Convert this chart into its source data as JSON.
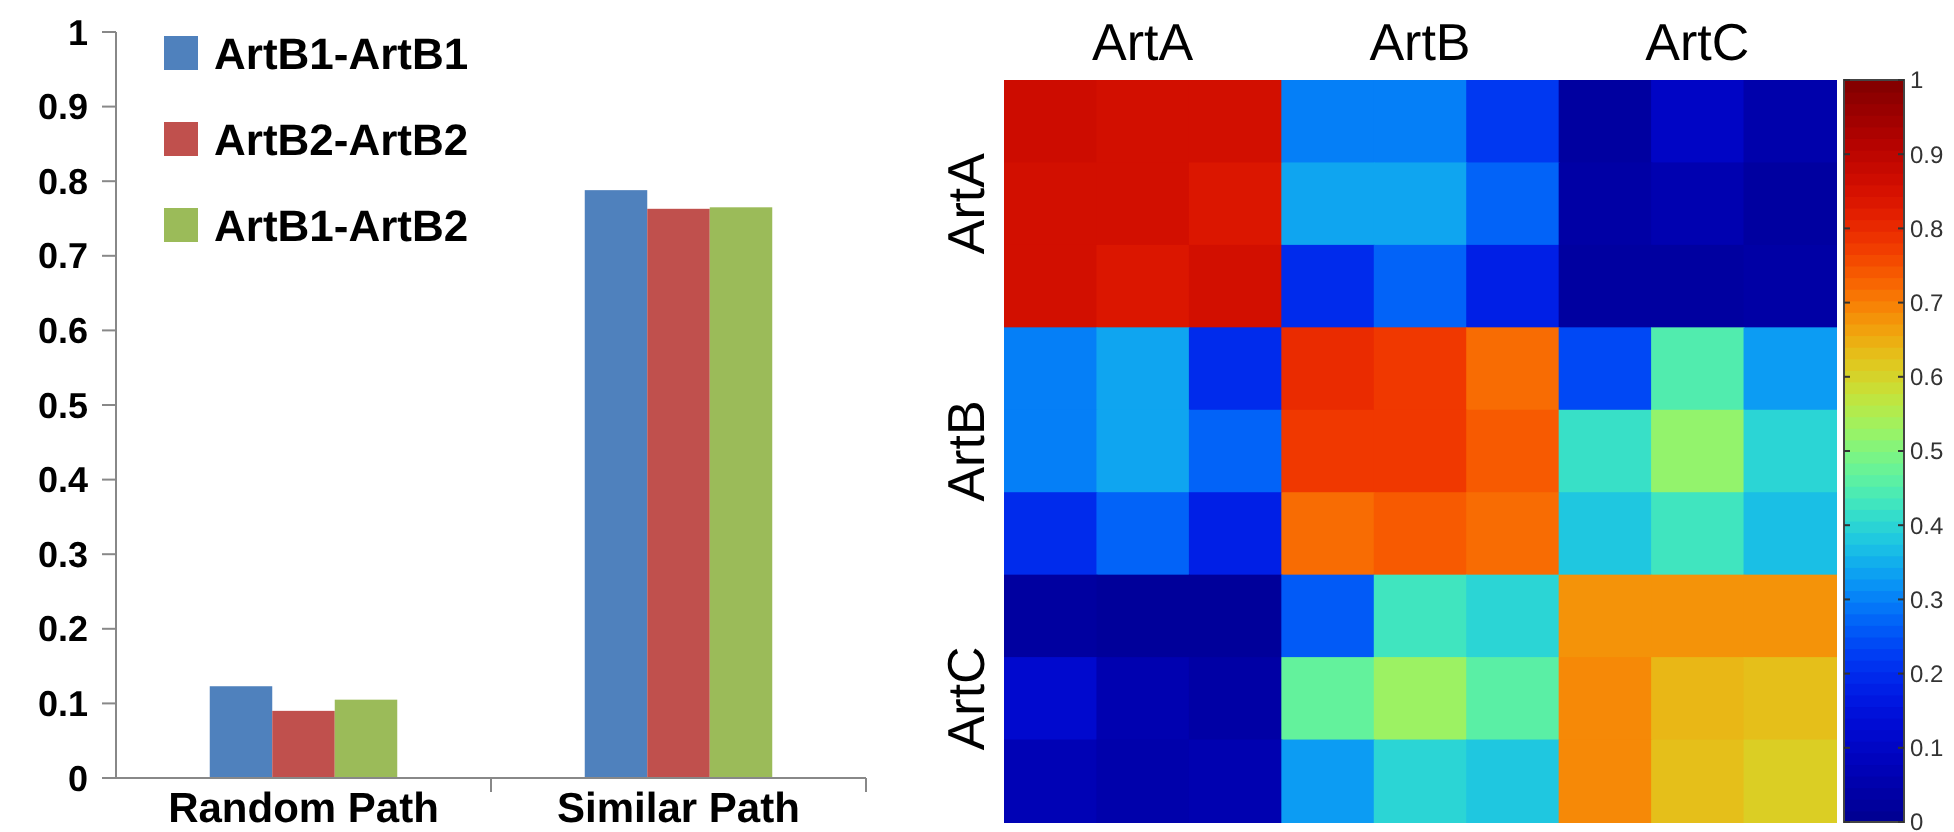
{
  "chart_data": [
    {
      "type": "bar",
      "categories": [
        "Random Path",
        "Similar Path"
      ],
      "ylim": [
        0,
        1
      ],
      "yticks": [
        0,
        0.1,
        0.2,
        0.3,
        0.4,
        0.5,
        0.6,
        0.7,
        0.8,
        0.9,
        1
      ],
      "grid": false,
      "legend": "top left",
      "series": [
        {
          "name": "ArtB1-ArtB1",
          "color": "#4f81bd",
          "values": [
            0.123,
            0.788
          ]
        },
        {
          "name": "ArtB2-ArtB2",
          "color": "#c0504d",
          "values": [
            0.09,
            0.763
          ]
        },
        {
          "name": "ArtB1-ArtB2",
          "color": "#9bbb59",
          "values": [
            0.105,
            0.765
          ]
        }
      ]
    },
    {
      "type": "heatmap",
      "categories": [
        null,
        "ArtA",
        null,
        null,
        "ArtB",
        null,
        null,
        "ArtC",
        null
      ],
      "y_categories": [
        null,
        "ArtA",
        null,
        null,
        "ArtB",
        null,
        null,
        "ArtC",
        null
      ],
      "clim": [
        0,
        1
      ],
      "cticks": [
        0,
        0.1,
        0.2,
        0.3,
        0.4,
        0.5,
        0.6,
        0.7,
        0.8,
        0.9,
        1
      ],
      "cells": [
        [
          0.87,
          0.86,
          0.86,
          0.3,
          0.3,
          0.22,
          0.03,
          0.1,
          0.05
        ],
        [
          0.86,
          0.86,
          0.84,
          0.34,
          0.34,
          0.27,
          0.04,
          0.06,
          0.03
        ],
        [
          0.86,
          0.84,
          0.86,
          0.2,
          0.27,
          0.18,
          0.03,
          0.03,
          0.04
        ],
        [
          0.3,
          0.34,
          0.2,
          0.8,
          0.78,
          0.72,
          0.24,
          0.45,
          0.33
        ],
        [
          0.3,
          0.34,
          0.27,
          0.78,
          0.78,
          0.74,
          0.42,
          0.52,
          0.4
        ],
        [
          0.2,
          0.27,
          0.18,
          0.72,
          0.74,
          0.72,
          0.38,
          0.43,
          0.37
        ],
        [
          0.03,
          0.02,
          0.02,
          0.26,
          0.43,
          0.4,
          0.68,
          0.68,
          0.68
        ],
        [
          0.12,
          0.06,
          0.04,
          0.47,
          0.53,
          0.46,
          0.69,
          0.64,
          0.63
        ],
        [
          0.07,
          0.05,
          0.06,
          0.33,
          0.4,
          0.38,
          0.69,
          0.63,
          0.61
        ]
      ]
    }
  ]
}
